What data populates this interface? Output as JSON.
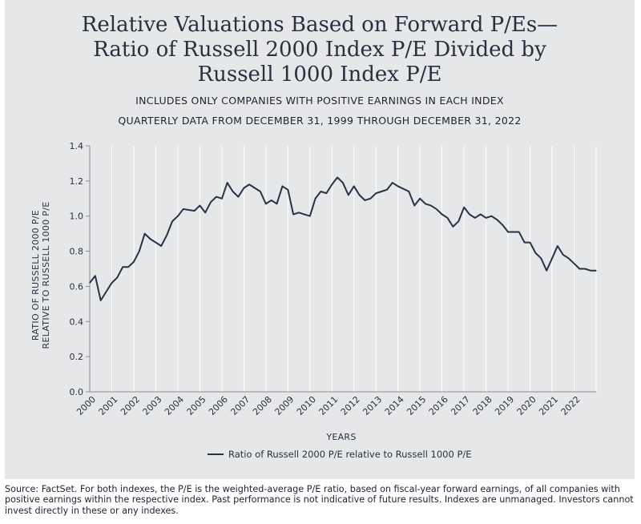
{
  "title_lines": [
    "Relative Valuations Based on Forward P/Es—",
    "Ratio of Russell 2000 Index P/E Divided by",
    "Russell 1000 Index P/E"
  ],
  "subtitle_1": "INCLUDES ONLY COMPANIES WITH POSITIVE EARNINGS IN EACH INDEX",
  "subtitle_2": "QUARTERLY DATA FROM DECEMBER 31, 1999 THROUGH DECEMBER 31, 2022",
  "source": "Source: FactSet. For both indexes, the P/E is the weighted-average P/E ratio, based on fiscal-year forward earnings, of all companies with positive earnings within the respective index. Past performance is not indicative of future results. Indexes are unmanaged. Investors cannot invest directly in these or any indexes.",
  "colors": {
    "line": "#2b3049",
    "grid": "#ffffff",
    "panel": "#e6e7e8",
    "text": "#2b2f3f"
  },
  "chart_data": {
    "type": "line",
    "xlabel": "YEARS",
    "ylabel_lines": [
      "RATIO OF RUSSELL 2000 P/E",
      "RELATIVE TO RUSSELL 1000 P/E"
    ],
    "ylim": [
      0.0,
      1.4
    ],
    "yticks": [
      "0.0",
      "0.2",
      "0.4",
      "0.6",
      "0.8",
      "1.0",
      "1.2",
      "1.4"
    ],
    "xtick_labels": [
      "2000",
      "2001",
      "2002",
      "2003",
      "2004",
      "2005",
      "2006",
      "2007",
      "2008",
      "2009",
      "2010",
      "2011",
      "2012",
      "2013",
      "2014",
      "2015",
      "2016",
      "2017",
      "2018",
      "2019",
      "2020",
      "2021",
      "2022"
    ],
    "grid": "vertical",
    "legend": "bottom-center",
    "series": [
      {
        "name": "Ratio of Russell 2000 P/E relative to Russell 1000 P/E",
        "x": [
          "1999-12-31",
          "2000-03-31",
          "2000-06-30",
          "2000-09-30",
          "2000-12-31",
          "2001-03-31",
          "2001-06-30",
          "2001-09-30",
          "2001-12-31",
          "2002-03-31",
          "2002-06-30",
          "2002-09-30",
          "2002-12-31",
          "2003-03-31",
          "2003-06-30",
          "2003-09-30",
          "2003-12-31",
          "2004-03-31",
          "2004-06-30",
          "2004-09-30",
          "2004-12-31",
          "2005-03-31",
          "2005-06-30",
          "2005-09-30",
          "2005-12-31",
          "2006-03-31",
          "2006-06-30",
          "2006-09-30",
          "2006-12-31",
          "2007-03-31",
          "2007-06-30",
          "2007-09-30",
          "2007-12-31",
          "2008-03-31",
          "2008-06-30",
          "2008-09-30",
          "2008-12-31",
          "2009-03-31",
          "2009-06-30",
          "2009-09-30",
          "2009-12-31",
          "2010-03-31",
          "2010-06-30",
          "2010-09-30",
          "2010-12-31",
          "2011-03-31",
          "2011-06-30",
          "2011-09-30",
          "2011-12-31",
          "2012-03-31",
          "2012-06-30",
          "2012-09-30",
          "2012-12-31",
          "2013-03-31",
          "2013-06-30",
          "2013-09-30",
          "2013-12-31",
          "2014-03-31",
          "2014-06-30",
          "2014-09-30",
          "2014-12-31",
          "2015-03-31",
          "2015-06-30",
          "2015-09-30",
          "2015-12-31",
          "2016-03-31",
          "2016-06-30",
          "2016-09-30",
          "2016-12-31",
          "2017-03-31",
          "2017-06-30",
          "2017-09-30",
          "2017-12-31",
          "2018-03-31",
          "2018-06-30",
          "2018-09-30",
          "2018-12-31",
          "2019-03-31",
          "2019-06-30",
          "2019-09-30",
          "2019-12-31",
          "2020-03-31",
          "2020-06-30",
          "2020-09-30",
          "2020-12-31",
          "2021-03-31",
          "2021-06-30",
          "2021-09-30",
          "2021-12-31",
          "2022-03-31",
          "2022-06-30",
          "2022-09-30",
          "2022-12-31"
        ],
        "values": [
          0.62,
          0.66,
          0.52,
          0.57,
          0.62,
          0.65,
          0.71,
          0.71,
          0.74,
          0.8,
          0.9,
          0.87,
          0.85,
          0.83,
          0.89,
          0.97,
          1.0,
          1.04,
          1.035,
          1.03,
          1.06,
          1.02,
          1.08,
          1.11,
          1.1,
          1.19,
          1.14,
          1.11,
          1.16,
          1.18,
          1.16,
          1.14,
          1.07,
          1.09,
          1.07,
          1.17,
          1.15,
          1.01,
          1.02,
          1.01,
          1.0,
          1.1,
          1.14,
          1.13,
          1.18,
          1.22,
          1.19,
          1.12,
          1.17,
          1.12,
          1.09,
          1.1,
          1.13,
          1.14,
          1.15,
          1.19,
          1.17,
          1.155,
          1.14,
          1.06,
          1.1,
          1.07,
          1.06,
          1.04,
          1.01,
          0.99,
          0.94,
          0.97,
          1.05,
          1.01,
          0.99,
          1.01,
          0.99,
          1.0,
          0.98,
          0.95,
          0.91,
          0.91,
          0.91,
          0.85,
          0.85,
          0.79,
          0.76,
          0.69,
          0.76,
          0.83,
          0.78,
          0.76,
          0.73,
          0.7,
          0.7,
          0.69,
          0.69
        ]
      }
    ]
  }
}
